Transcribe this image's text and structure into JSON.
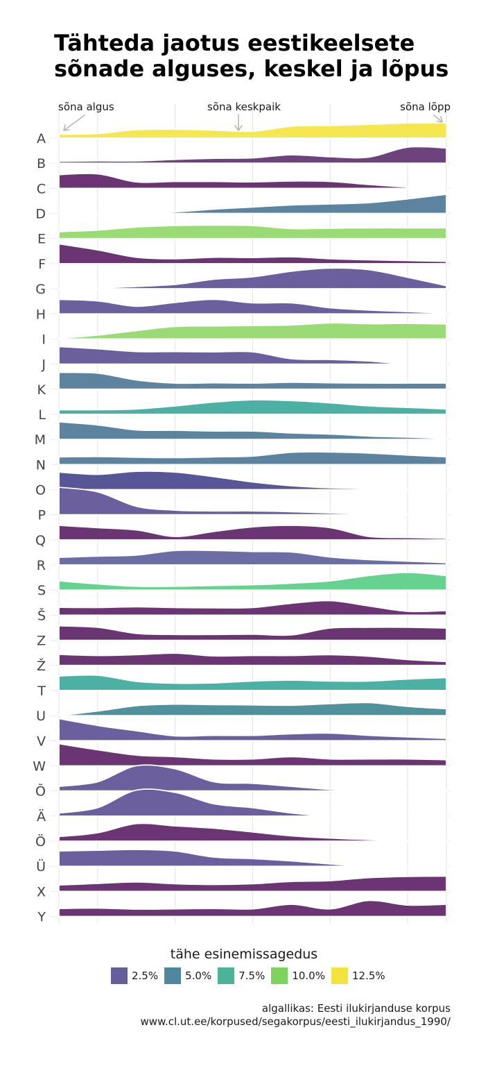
{
  "title_lines": [
    "Tähteda jaotus eestikeelsete",
    "sõnade alguses, keskel ja lõpus"
  ],
  "annotations": [
    "sõna algus",
    "sõna keskpaik",
    "sõna lõpp"
  ],
  "legend": {
    "title": "tähe esinemissagedus",
    "items": [
      {
        "label": "2.5%",
        "color": "#645f98"
      },
      {
        "label": "5.0%",
        "color": "#4e879f"
      },
      {
        "label": "7.5%",
        "color": "#49b497"
      },
      {
        "label": "10.0%",
        "color": "#7ed35f"
      },
      {
        "label": "12.5%",
        "color": "#f5e33d"
      }
    ]
  },
  "caption_lines": [
    "algallikas: Eesti ilukirjanduse korpus",
    "www.cl.ut.ee/korpused/segakorpus/eesti_ilukirjandus_1990/"
  ],
  "chart_data": {
    "type": "area",
    "subtype": "ridgeline",
    "title": "Tähteda jaotus eestikeelsete sõnade alguses, keskel ja lõpus",
    "xlabel": "",
    "ylabel": "",
    "x_positions": [
      0,
      0.1,
      0.2,
      0.3,
      0.4,
      0.5,
      0.6,
      0.7,
      0.8,
      0.9,
      1.0
    ],
    "x_annotations": {
      "0": "sõna algus",
      "0.5": "sõna keskpaik",
      "1": "sõna lõpp"
    },
    "grid": true,
    "legend_position": "bottom",
    "color_scale": "tähe esinemissagedus",
    "series": [
      {
        "name": "A",
        "color": "#f5e33d",
        "values": [
          0.25,
          0.3,
          0.55,
          0.58,
          0.52,
          0.45,
          0.78,
          0.82,
          0.9,
          0.98,
          1.0
        ]
      },
      {
        "name": "B",
        "color": "#5d2f6f",
        "values": [
          0.12,
          0.15,
          0.15,
          0.25,
          0.32,
          0.35,
          0.55,
          0.42,
          0.4,
          1.05,
          1.0
        ]
      },
      {
        "name": "C",
        "color": "#5a1f63",
        "values": [
          0.9,
          0.95,
          0.42,
          0.45,
          0.45,
          0.42,
          0.48,
          0.45,
          0.25,
          0.08,
          0.0
        ]
      },
      {
        "name": "D",
        "color": "#4a7595",
        "values": [
          0.0,
          0.0,
          0.02,
          0.1,
          0.28,
          0.42,
          0.55,
          0.62,
          0.7,
          0.95,
          1.25
        ]
      },
      {
        "name": "E",
        "color": "#8fd766",
        "values": [
          0.45,
          0.55,
          0.75,
          0.85,
          0.88,
          0.85,
          0.65,
          0.68,
          0.7,
          0.7,
          0.7
        ]
      },
      {
        "name": "F",
        "color": "#5a1f63",
        "values": [
          1.3,
          0.9,
          0.42,
          0.32,
          0.42,
          0.4,
          0.45,
          0.32,
          0.25,
          0.2,
          0.15
        ]
      },
      {
        "name": "G",
        "color": "#5b4e92",
        "values": [
          0.02,
          0.05,
          0.15,
          0.28,
          0.62,
          0.78,
          1.15,
          1.35,
          1.25,
          0.75,
          0.2
        ]
      },
      {
        "name": "H",
        "color": "#5b4e92",
        "values": [
          0.95,
          0.85,
          0.5,
          0.75,
          0.95,
          0.72,
          0.72,
          0.4,
          0.25,
          0.15,
          0.05
        ]
      },
      {
        "name": "I",
        "color": "#8fd766",
        "values": [
          0.05,
          0.25,
          0.55,
          0.82,
          0.85,
          0.88,
          0.92,
          1.05,
          1.0,
          1.02,
          0.98
        ]
      },
      {
        "name": "J",
        "color": "#5b4e92",
        "values": [
          1.15,
          1.0,
          0.82,
          0.82,
          0.8,
          0.8,
          0.35,
          0.3,
          0.2,
          0.0,
          0.0
        ]
      },
      {
        "name": "K",
        "color": "#4a7595",
        "values": [
          1.1,
          1.05,
          0.6,
          0.4,
          0.42,
          0.4,
          0.45,
          0.42,
          0.4,
          0.4,
          0.4
        ]
      },
      {
        "name": "L",
        "color": "#3aa79a",
        "values": [
          0.3,
          0.3,
          0.35,
          0.55,
          0.8,
          0.95,
          0.9,
          0.75,
          0.55,
          0.45,
          0.35
        ]
      },
      {
        "name": "M",
        "color": "#4a7595",
        "values": [
          1.15,
          0.95,
          0.62,
          0.6,
          0.55,
          0.55,
          0.42,
          0.35,
          0.22,
          0.15,
          0.05
        ]
      },
      {
        "name": "N",
        "color": "#4a7595",
        "values": [
          0.5,
          0.52,
          0.48,
          0.45,
          0.5,
          0.55,
          0.8,
          0.82,
          0.75,
          0.62,
          0.5
        ]
      },
      {
        "name": "O",
        "color": "#45458c",
        "values": [
          1.15,
          1.0,
          1.2,
          1.15,
          0.85,
          0.5,
          0.25,
          0.12,
          0.08,
          0.05,
          0.0
        ]
      },
      {
        "name": "P",
        "color": "#5b4e92",
        "values": [
          1.8,
          1.5,
          0.55,
          0.3,
          0.25,
          0.25,
          0.2,
          0.12,
          0.05,
          0.02,
          0.0
        ]
      },
      {
        "name": "Q",
        "color": "#5a1f63",
        "values": [
          0.95,
          0.8,
          0.65,
          0.22,
          0.55,
          0.85,
          0.95,
          0.8,
          0.22,
          0.15,
          0.1
        ]
      },
      {
        "name": "R",
        "color": "#5b5e99",
        "values": [
          0.5,
          0.58,
          0.65,
          0.95,
          0.95,
          0.88,
          0.85,
          0.52,
          0.35,
          0.25,
          0.15
        ]
      },
      {
        "name": "S",
        "color": "#56cc83",
        "values": [
          0.6,
          0.4,
          0.25,
          0.25,
          0.3,
          0.35,
          0.45,
          0.6,
          0.95,
          1.15,
          0.95
        ]
      },
      {
        "name": "Š",
        "color": "#5a1f63",
        "values": [
          0.52,
          0.5,
          0.55,
          0.5,
          0.48,
          0.5,
          0.78,
          0.95,
          0.6,
          0.25,
          0.3
        ]
      },
      {
        "name": "Z",
        "color": "#5a1f63",
        "values": [
          0.95,
          0.85,
          0.45,
          0.38,
          0.38,
          0.4,
          0.35,
          0.8,
          0.85,
          0.85,
          0.8
        ]
      },
      {
        "name": "Ž",
        "color": "#5a1f63",
        "values": [
          0.72,
          0.65,
          0.7,
          0.8,
          0.62,
          0.65,
          0.65,
          0.7,
          0.6,
          0.38,
          0.25
        ]
      },
      {
        "name": "T",
        "color": "#3aa79a",
        "values": [
          0.95,
          1.0,
          0.6,
          0.48,
          0.5,
          0.62,
          0.68,
          0.62,
          0.62,
          0.75,
          0.85
        ]
      },
      {
        "name": "U",
        "color": "#3d8593",
        "values": [
          0.0,
          0.3,
          0.65,
          0.75,
          0.72,
          0.7,
          0.68,
          0.78,
          0.85,
          0.6,
          0.45
        ]
      },
      {
        "name": "V",
        "color": "#5b4e92",
        "values": [
          1.45,
          1.0,
          0.65,
          0.32,
          0.35,
          0.35,
          0.45,
          0.5,
          0.35,
          0.25,
          0.15
        ]
      },
      {
        "name": "W",
        "color": "#5a1f63",
        "values": [
          1.45,
          1.05,
          0.7,
          0.6,
          0.45,
          0.45,
          0.6,
          0.45,
          0.45,
          0.45,
          0.4
        ]
      },
      {
        "name": "Õ",
        "color": "#5b4e92",
        "values": [
          0.3,
          0.6,
          1.65,
          1.45,
          0.6,
          0.5,
          0.3,
          0.1,
          0.0,
          0.0,
          0.0
        ]
      },
      {
        "name": "Ä",
        "color": "#5b4e92",
        "values": [
          0.2,
          0.55,
          1.7,
          1.55,
          0.8,
          0.55,
          0.2,
          0.0,
          0.0,
          0.0,
          0.0
        ]
      },
      {
        "name": "Ö",
        "color": "#5a1f63",
        "values": [
          0.3,
          0.55,
          1.15,
          1.0,
          0.85,
          0.6,
          0.35,
          0.2,
          0.1,
          0.05,
          0.0
        ]
      },
      {
        "name": "Ü",
        "color": "#5b4e92",
        "values": [
          1.0,
          1.05,
          1.1,
          1.0,
          0.6,
          0.5,
          0.35,
          0.15,
          0.0,
          0.0,
          0.0
        ]
      },
      {
        "name": "X",
        "color": "#5a1f63",
        "values": [
          0.42,
          0.52,
          0.62,
          0.5,
          0.45,
          0.5,
          0.65,
          0.7,
          0.9,
          0.98,
          1.0
        ]
      },
      {
        "name": "Y",
        "color": "#5a1f63",
        "values": [
          0.52,
          0.55,
          0.48,
          0.5,
          0.52,
          0.5,
          0.8,
          0.5,
          1.05,
          0.75,
          0.8
        ]
      }
    ]
  }
}
